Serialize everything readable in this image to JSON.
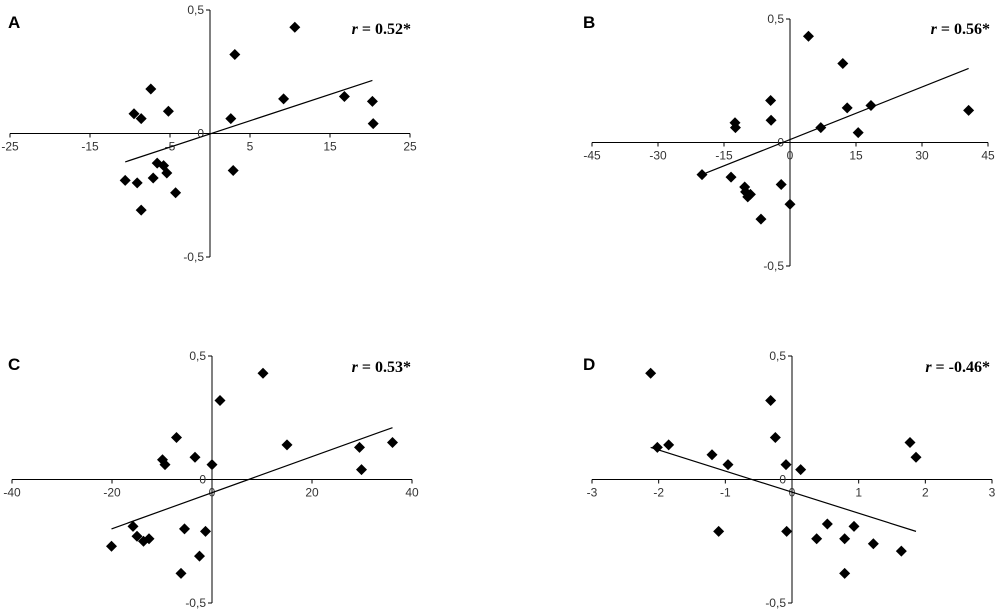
{
  "chart_data": [
    {
      "panel": "A",
      "type": "scatter",
      "marker": "diamond",
      "x_ticks": [
        "-25",
        "-15",
        "-5",
        "5",
        "15",
        "25"
      ],
      "y_ticks": [
        "0,5",
        "0",
        "-0,5"
      ],
      "xlim": [
        -25,
        25
      ],
      "ylim": [
        -0.5,
        0.5
      ],
      "r_label": "= 0.52*",
      "x": [
        -7.4,
        -9.5,
        -8.6,
        -5.2,
        3.1,
        10.6,
        2.6,
        9.2,
        16.8,
        20.3,
        20.4,
        -6.6,
        -7.1,
        -5.4,
        -5.8,
        -10.6,
        -9.1,
        -8.6,
        -4.3,
        2.9
      ],
      "y": [
        0.18,
        0.08,
        0.06,
        0.09,
        0.32,
        0.43,
        0.06,
        0.14,
        0.15,
        0.13,
        0.04,
        -0.12,
        -0.18,
        -0.16,
        -0.13,
        -0.19,
        -0.2,
        -0.31,
        -0.24,
        -0.15
      ],
      "trendline": {
        "x": [
          -10.6,
          20.3
        ],
        "y": [
          -0.115,
          0.215
        ]
      }
    },
    {
      "panel": "B",
      "type": "scatter",
      "marker": "diamond",
      "x_ticks": [
        "-45",
        "-30",
        "-15",
        "0",
        "15",
        "30",
        "45"
      ],
      "y_ticks": [
        "0,5",
        "0",
        "-0,5"
      ],
      "xlim": [
        -45,
        45
      ],
      "ylim": [
        -0.5,
        0.5
      ],
      "r_label": "= 0.56*",
      "x": [
        -12.5,
        -12.4,
        -4.4,
        -4.3,
        4.2,
        7.0,
        12.0,
        13.0,
        15.5,
        18.4,
        40.6,
        -20.0,
        -13.4,
        -10.3,
        -10.1,
        -9.6,
        -9.0,
        -2.0,
        -6.6,
        0.0
      ],
      "y": [
        0.08,
        0.06,
        0.17,
        0.09,
        0.43,
        0.06,
        0.32,
        0.14,
        0.04,
        0.15,
        0.13,
        -0.13,
        -0.14,
        -0.18,
        -0.2,
        -0.22,
        -0.21,
        -0.17,
        -0.31,
        -0.25
      ],
      "trendline": {
        "x": [
          -20.0,
          40.6
        ],
        "y": [
          -0.13,
          0.3
        ]
      }
    },
    {
      "panel": "C",
      "type": "scatter",
      "marker": "diamond",
      "x_ticks": [
        "-40",
        "-20",
        "0",
        "20",
        "40"
      ],
      "y_ticks": [
        "0,5",
        "0",
        "-0,5"
      ],
      "xlim": [
        -40,
        40
      ],
      "ylim": [
        -0.5,
        0.5
      ],
      "r_label": "= 0.53*",
      "x": [
        -7.1,
        -9.9,
        -9.4,
        -3.4,
        0.0,
        1.6,
        10.2,
        15.0,
        29.5,
        29.9,
        36.1,
        -20.1,
        -15.8,
        -15.0,
        -13.7,
        -12.6,
        -5.5,
        -1.3,
        -6.2,
        -2.5
      ],
      "y": [
        0.17,
        0.08,
        0.06,
        0.09,
        0.06,
        0.32,
        0.43,
        0.14,
        0.13,
        0.04,
        0.15,
        -0.27,
        -0.19,
        -0.23,
        -0.25,
        -0.24,
        -0.2,
        -0.21,
        -0.38,
        -0.31
      ],
      "trendline": {
        "x": [
          -20.1,
          36.1
        ],
        "y": [
          -0.2,
          0.21
        ]
      }
    },
    {
      "panel": "D",
      "type": "scatter",
      "marker": "diamond",
      "x_ticks": [
        "-3",
        "-2",
        "-1",
        "0",
        "1",
        "2",
        "3"
      ],
      "y_ticks": [
        "0,5",
        "0",
        "-0,5"
      ],
      "xlim": [
        -3,
        3
      ],
      "ylim": [
        -0.5,
        0.5
      ],
      "r_label": "= -0.46*",
      "x": [
        -2.12,
        -2.02,
        -1.85,
        -1.2,
        -0.96,
        -0.32,
        -0.25,
        -0.09,
        0.13,
        1.77,
        1.86,
        -1.1,
        -0.08,
        0.37,
        0.53,
        0.79,
        0.93,
        1.22,
        1.64,
        0.79
      ],
      "y": [
        0.43,
        0.13,
        0.14,
        0.1,
        0.06,
        0.32,
        0.17,
        0.06,
        0.04,
        0.15,
        0.09,
        -0.21,
        -0.21,
        -0.24,
        -0.18,
        -0.24,
        -0.19,
        -0.26,
        -0.29,
        -0.38
      ],
      "trendline": {
        "x": [
          -2.12,
          1.86
        ],
        "y": [
          0.13,
          -0.21
        ]
      }
    }
  ]
}
